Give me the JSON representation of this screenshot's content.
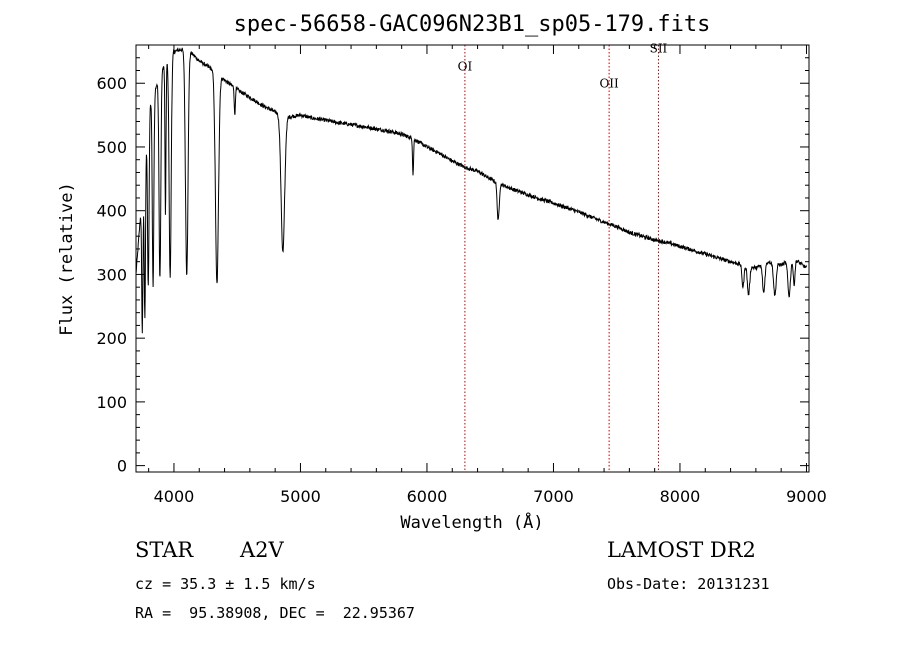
{
  "chart_data": {
    "type": "line",
    "title": "spec-56658-GAC096N23B1_sp05-179.fits",
    "xlabel": "Wavelength (Å)",
    "ylabel": "Flux (relative)",
    "xlim": [
      3700,
      9020
    ],
    "ylim": [
      -10,
      660
    ],
    "xticks": [
      4000,
      5000,
      6000,
      7000,
      8000,
      9000
    ],
    "yticks": [
      0,
      100,
      200,
      300,
      400,
      500,
      600
    ],
    "grid": false,
    "series": [
      {
        "continuum": [
          [
            3700,
            300
          ],
          [
            3800,
            560
          ],
          [
            3900,
            620
          ],
          [
            4000,
            650
          ],
          [
            4100,
            655
          ],
          [
            4200,
            635
          ],
          [
            4300,
            622
          ],
          [
            4400,
            605
          ],
          [
            4500,
            590
          ],
          [
            4600,
            578
          ],
          [
            4700,
            565
          ],
          [
            4800,
            555
          ],
          [
            4900,
            547
          ],
          [
            5000,
            550
          ],
          [
            5100,
            545
          ],
          [
            5200,
            542
          ],
          [
            5300,
            538
          ],
          [
            5400,
            535
          ],
          [
            5500,
            532
          ],
          [
            5600,
            528
          ],
          [
            5700,
            525
          ],
          [
            5800,
            520
          ],
          [
            5900,
            512
          ],
          [
            6000,
            500
          ],
          [
            6100,
            490
          ],
          [
            6200,
            478
          ],
          [
            6300,
            468
          ],
          [
            6400,
            462
          ],
          [
            6500,
            450
          ],
          [
            6600,
            440
          ],
          [
            6700,
            432
          ],
          [
            6800,
            425
          ],
          [
            6900,
            418
          ],
          [
            7000,
            412
          ],
          [
            7100,
            405
          ],
          [
            7200,
            398
          ],
          [
            7300,
            390
          ],
          [
            7400,
            382
          ],
          [
            7500,
            375
          ],
          [
            7600,
            366
          ],
          [
            7700,
            360
          ],
          [
            7800,
            354
          ],
          [
            7900,
            350
          ],
          [
            8000,
            344
          ],
          [
            8100,
            338
          ],
          [
            8200,
            332
          ],
          [
            8300,
            326
          ],
          [
            8400,
            320
          ],
          [
            8500,
            315
          ],
          [
            8600,
            310
          ],
          [
            8700,
            320
          ],
          [
            8800,
            315
          ],
          [
            8900,
            325
          ],
          [
            9000,
            310
          ]
        ],
        "absorption_lines": [
          {
            "center": 3750,
            "depth": 220,
            "width": 5
          },
          {
            "center": 3770,
            "depth": 250,
            "width": 5
          },
          {
            "center": 3797,
            "depth": 270,
            "width": 6
          },
          {
            "center": 3835,
            "depth": 300,
            "width": 6
          },
          {
            "center": 3889,
            "depth": 320,
            "width": 7
          },
          {
            "center": 3933,
            "depth": 240,
            "width": 4
          },
          {
            "center": 3970,
            "depth": 345,
            "width": 8
          },
          {
            "center": 4101,
            "depth": 355,
            "width": 10
          },
          {
            "center": 4340,
            "depth": 330,
            "width": 12
          },
          {
            "center": 4481,
            "depth": 45,
            "width": 4
          },
          {
            "center": 4861,
            "depth": 215,
            "width": 14
          },
          {
            "center": 5890,
            "depth": 55,
            "width": 4
          },
          {
            "center": 6563,
            "depth": 60,
            "width": 8
          },
          {
            "center": 8498,
            "depth": 35,
            "width": 8
          },
          {
            "center": 8542,
            "depth": 45,
            "width": 9
          },
          {
            "center": 8662,
            "depth": 45,
            "width": 9
          },
          {
            "center": 8750,
            "depth": 50,
            "width": 10
          },
          {
            "center": 8863,
            "depth": 55,
            "width": 10
          },
          {
            "center": 8902,
            "depth": 40,
            "width": 7
          }
        ]
      }
    ],
    "line_markers": [
      {
        "label": "OI",
        "wavelength": 6300,
        "label_y": 620
      },
      {
        "label": "OII",
        "wavelength": 7440,
        "label_y": 593
      },
      {
        "label": "SII",
        "wavelength": 7830,
        "label_y": 648
      }
    ],
    "annotations": {
      "type_label": "STAR",
      "subclass": "A2V",
      "survey": "LAMOST DR2",
      "velocity": "cz = 35.3 ± 1.5 km/s",
      "obs_date": "Obs-Date: 20131231",
      "coords": "RA =  95.38908, DEC =  22.95367"
    },
    "colors": {
      "spectrum": "#000000",
      "marker": "#c00000"
    }
  }
}
